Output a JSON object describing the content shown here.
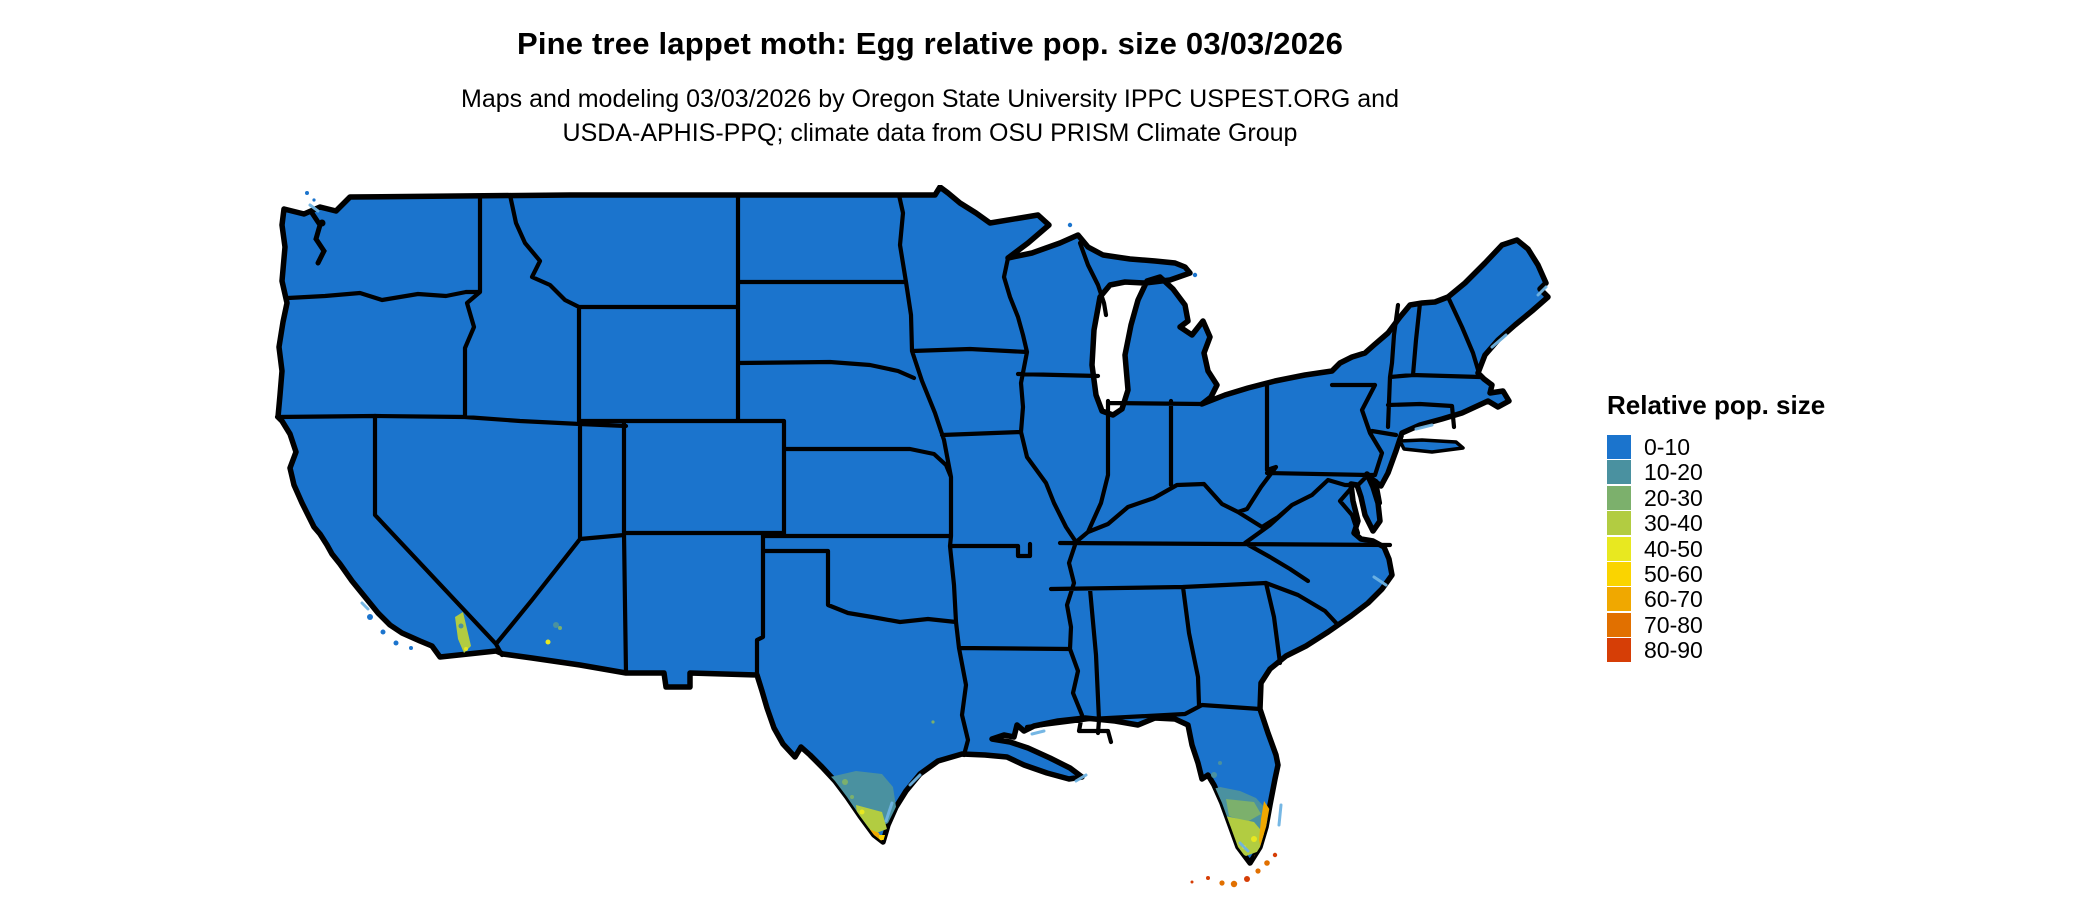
{
  "header": {
    "title": "Pine tree lappet moth: Egg relative pop. size 03/03/2026",
    "subtitle_line1": "Maps and modeling 03/03/2026 by Oregon State University IPPC USPEST.ORG and",
    "subtitle_line2": "USDA-APHIS-PPQ; climate data from OSU PRISM Climate Group"
  },
  "legend": {
    "title": "Relative pop. size",
    "items": [
      {
        "label": "0-10",
        "color": "#1B74CD"
      },
      {
        "label": "10-20",
        "color": "#4A91A0"
      },
      {
        "label": "20-30",
        "color": "#7CB06C"
      },
      {
        "label": "30-40",
        "color": "#B2CC41"
      },
      {
        "label": "40-50",
        "color": "#E8E820"
      },
      {
        "label": "50-60",
        "color": "#FAD400"
      },
      {
        "label": "60-70",
        "color": "#F0A800"
      },
      {
        "label": "70-80",
        "color": "#E17000"
      },
      {
        "label": "80-90",
        "color": "#D63E06"
      }
    ]
  },
  "map": {
    "description": "Conterminous United States raster map, state outlines in black; nearly all area in lowest class 0-10",
    "base_fill": "#1B74CD",
    "border_color": "#000000",
    "water_color": "#FFFFFF",
    "coastal_fringe_color": "#6FB3E3",
    "hotspots": [
      {
        "region": "south-texas-rio-grande-valley",
        "levels": [
          "10-20",
          "20-30",
          "30-40",
          "40-50",
          "60-70"
        ]
      },
      {
        "region": "south-florida-peninsula",
        "levels": [
          "10-20",
          "20-30",
          "30-40",
          "40-50",
          "60-70",
          "70-80"
        ]
      },
      {
        "region": "florida-keys",
        "levels": [
          "70-80",
          "80-90"
        ]
      },
      {
        "region": "southern-california-inland-specks",
        "levels": [
          "10-20",
          "30-40",
          "40-50"
        ]
      },
      {
        "region": "southern-arizona-specks",
        "levels": [
          "10-20",
          "40-50"
        ]
      }
    ]
  }
}
